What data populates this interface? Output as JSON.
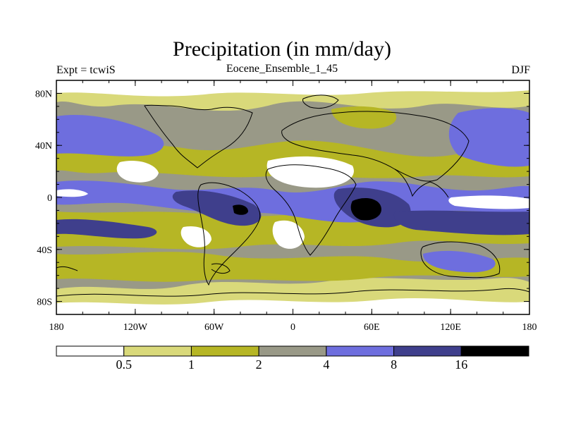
{
  "header": {
    "title": "Precipitation (in mm/day)",
    "left_label": "Expt = tcwiS",
    "center_label": "Eocene_Ensemble_1_45",
    "right_label": "DJF"
  },
  "map": {
    "lon_range": [
      -180,
      180
    ],
    "lat_range": [
      -90,
      90
    ],
    "lon_ticks": [
      {
        "value": -180,
        "label": "180"
      },
      {
        "value": -120,
        "label": "120W"
      },
      {
        "value": -60,
        "label": "60W"
      },
      {
        "value": 0,
        "label": "0"
      },
      {
        "value": 60,
        "label": "60E"
      },
      {
        "value": 120,
        "label": "120E"
      },
      {
        "value": 180,
        "label": "180"
      }
    ],
    "lat_ticks": [
      {
        "value": 80,
        "label": "80N"
      },
      {
        "value": 40,
        "label": "40N"
      },
      {
        "value": 0,
        "label": "0"
      },
      {
        "value": -40,
        "label": "40S"
      },
      {
        "value": -80,
        "label": "80S"
      }
    ]
  },
  "colorbar": {
    "colors": [
      "#ffffff",
      "#d9d97a",
      "#b6b625",
      "#999987",
      "#6e6ede",
      "#3f3f8c",
      "#000000"
    ],
    "labels": [
      "0.5",
      "1",
      "2",
      "4",
      "8",
      "16"
    ]
  }
}
